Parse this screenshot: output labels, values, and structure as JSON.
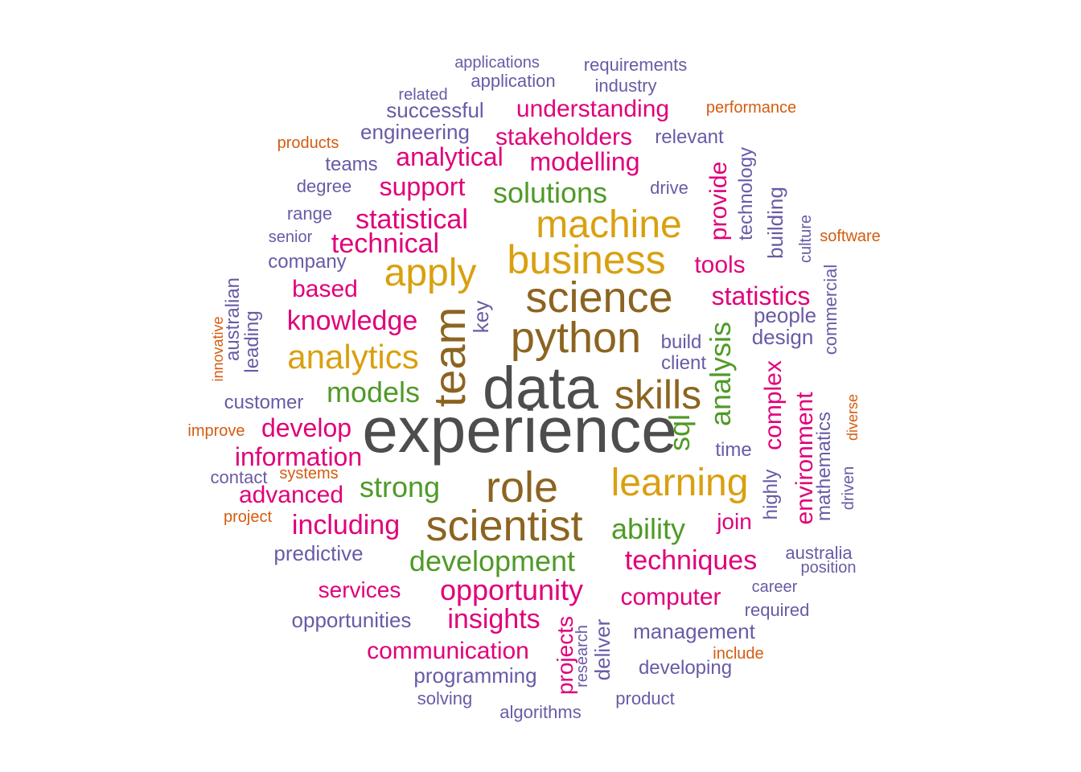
{
  "colors": {
    "gray": "#4d4d4d",
    "brown": "#8c6420",
    "gold": "#d9a00f",
    "green": "#4f9a27",
    "magenta": "#e0007a",
    "purple": "#6a5aa6",
    "orange": "#d45c10"
  },
  "words": [
    {
      "text": "experience",
      "color": "gray"
    },
    {
      "text": "data",
      "color": "gray"
    },
    {
      "text": "team",
      "color": "brown"
    },
    {
      "text": "python",
      "color": "brown"
    },
    {
      "text": "science",
      "color": "brown"
    },
    {
      "text": "scientist",
      "color": "brown"
    },
    {
      "text": "role",
      "color": "brown"
    },
    {
      "text": "skills",
      "color": "brown"
    },
    {
      "text": "business",
      "color": "gold"
    },
    {
      "text": "machine",
      "color": "gold"
    },
    {
      "text": "apply",
      "color": "gold"
    },
    {
      "text": "learning",
      "color": "gold"
    },
    {
      "text": "analytics",
      "color": "gold"
    },
    {
      "text": "models",
      "color": "green"
    },
    {
      "text": "strong",
      "color": "green"
    },
    {
      "text": "development",
      "color": "green"
    },
    {
      "text": "ability",
      "color": "green"
    },
    {
      "text": "solutions",
      "color": "green"
    },
    {
      "text": "sql",
      "color": "green"
    },
    {
      "text": "analysis",
      "color": "green"
    },
    {
      "text": "knowledge",
      "color": "magenta"
    },
    {
      "text": "statistical",
      "color": "magenta"
    },
    {
      "text": "technical",
      "color": "magenta"
    },
    {
      "text": "analytical",
      "color": "magenta"
    },
    {
      "text": "modelling",
      "color": "magenta"
    },
    {
      "text": "stakeholders",
      "color": "magenta"
    },
    {
      "text": "understanding",
      "color": "magenta"
    },
    {
      "text": "support",
      "color": "magenta"
    },
    {
      "text": "based",
      "color": "magenta"
    },
    {
      "text": "develop",
      "color": "magenta"
    },
    {
      "text": "information",
      "color": "magenta"
    },
    {
      "text": "advanced",
      "color": "magenta"
    },
    {
      "text": "including",
      "color": "magenta"
    },
    {
      "text": "opportunity",
      "color": "magenta"
    },
    {
      "text": "techniques",
      "color": "magenta"
    },
    {
      "text": "insights",
      "color": "magenta"
    },
    {
      "text": "communication",
      "color": "magenta"
    },
    {
      "text": "services",
      "color": "magenta"
    },
    {
      "text": "computer",
      "color": "magenta"
    },
    {
      "text": "statistics",
      "color": "magenta"
    },
    {
      "text": "tools",
      "color": "magenta"
    },
    {
      "text": "provide",
      "color": "magenta"
    },
    {
      "text": "complex",
      "color": "magenta"
    },
    {
      "text": "environment",
      "color": "magenta"
    },
    {
      "text": "join",
      "color": "magenta"
    },
    {
      "text": "projects",
      "color": "magenta"
    },
    {
      "text": "applications",
      "color": "purple"
    },
    {
      "text": "application",
      "color": "purple"
    },
    {
      "text": "requirements",
      "color": "purple"
    },
    {
      "text": "industry",
      "color": "purple"
    },
    {
      "text": "related",
      "color": "purple"
    },
    {
      "text": "successful",
      "color": "purple"
    },
    {
      "text": "engineering",
      "color": "purple"
    },
    {
      "text": "relevant",
      "color": "purple"
    },
    {
      "text": "teams",
      "color": "purple"
    },
    {
      "text": "degree",
      "color": "purple"
    },
    {
      "text": "drive",
      "color": "purple"
    },
    {
      "text": "range",
      "color": "purple"
    },
    {
      "text": "senior",
      "color": "purple"
    },
    {
      "text": "company",
      "color": "purple"
    },
    {
      "text": "technology",
      "color": "purple"
    },
    {
      "text": "building",
      "color": "purple"
    },
    {
      "text": "culture",
      "color": "purple"
    },
    {
      "text": "commercial",
      "color": "purple"
    },
    {
      "text": "people",
      "color": "purple"
    },
    {
      "text": "design",
      "color": "purple"
    },
    {
      "text": "build",
      "color": "purple"
    },
    {
      "text": "client",
      "color": "purple"
    },
    {
      "text": "key",
      "color": "purple"
    },
    {
      "text": "australian",
      "color": "purple"
    },
    {
      "text": "leading",
      "color": "purple"
    },
    {
      "text": "customer",
      "color": "purple"
    },
    {
      "text": "time",
      "color": "purple"
    },
    {
      "text": "highly",
      "color": "purple"
    },
    {
      "text": "mathematics",
      "color": "purple"
    },
    {
      "text": "driven",
      "color": "purple"
    },
    {
      "text": "contact",
      "color": "purple"
    },
    {
      "text": "predictive",
      "color": "purple"
    },
    {
      "text": "australia",
      "color": "purple"
    },
    {
      "text": "position",
      "color": "purple"
    },
    {
      "text": "career",
      "color": "purple"
    },
    {
      "text": "required",
      "color": "purple"
    },
    {
      "text": "opportunities",
      "color": "purple"
    },
    {
      "text": "management",
      "color": "purple"
    },
    {
      "text": "developing",
      "color": "purple"
    },
    {
      "text": "deliver",
      "color": "purple"
    },
    {
      "text": "research",
      "color": "purple"
    },
    {
      "text": "programming",
      "color": "purple"
    },
    {
      "text": "solving",
      "color": "purple"
    },
    {
      "text": "algorithms",
      "color": "purple"
    },
    {
      "text": "product",
      "color": "purple"
    },
    {
      "text": "performance",
      "color": "orange"
    },
    {
      "text": "products",
      "color": "orange"
    },
    {
      "text": "software",
      "color": "orange"
    },
    {
      "text": "innovative",
      "color": "orange"
    },
    {
      "text": "improve",
      "color": "orange"
    },
    {
      "text": "diverse",
      "color": "orange"
    },
    {
      "text": "systems",
      "color": "orange"
    },
    {
      "text": "project",
      "color": "orange"
    },
    {
      "text": "include",
      "color": "orange"
    }
  ]
}
